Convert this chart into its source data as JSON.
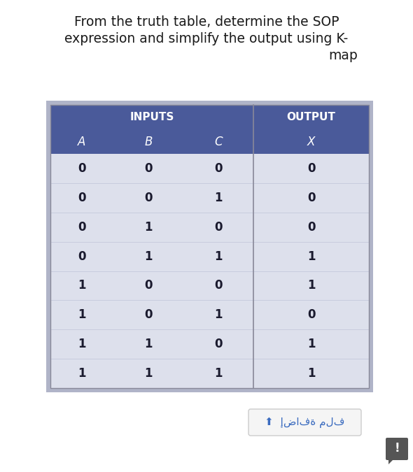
{
  "title_line1": "From the truth table, determine the SOP",
  "title_line2": "expression and simplify the output using K-",
  "title_line3": "map",
  "header_inputs": "INPUTS",
  "header_output": "OUTPUT",
  "col_headers": [
    "A",
    "B",
    "C",
    "X"
  ],
  "rows": [
    [
      0,
      0,
      0,
      0
    ],
    [
      0,
      0,
      1,
      0
    ],
    [
      0,
      1,
      0,
      0
    ],
    [
      0,
      1,
      1,
      1
    ],
    [
      1,
      0,
      0,
      1
    ],
    [
      1,
      0,
      1,
      0
    ],
    [
      1,
      1,
      0,
      1
    ],
    [
      1,
      1,
      1,
      1
    ]
  ],
  "header_bg": "#4a5a9a",
  "row_bg": "#dde0ec",
  "table_outer_bg": "#b0b4c8",
  "header_text_color": "#ffffff",
  "data_text_color": "#1a1a2e",
  "page_bg": "#ffffff",
  "card_bg": "#e8e8f0",
  "button_text": "↑ إضافة ملف",
  "button_color": "#3a6bbf",
  "title_fontsize": 13.5,
  "data_fontsize": 12
}
